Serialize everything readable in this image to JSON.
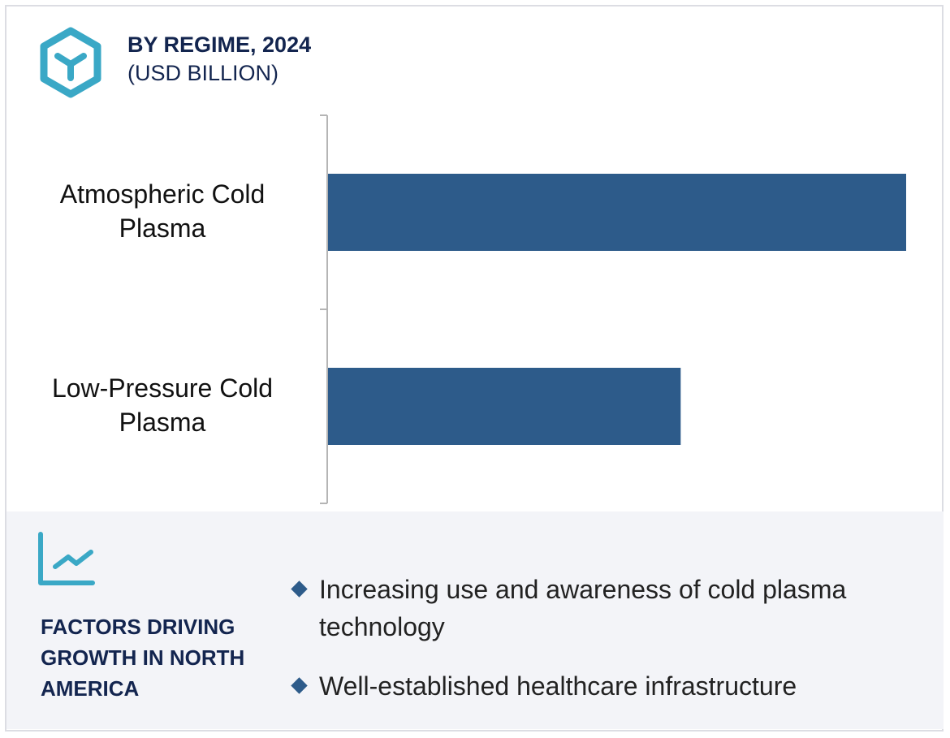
{
  "header": {
    "title": "BY REGIME, 2024",
    "subtitle": "(USD BILLION)",
    "icon": "hexagon-cube-icon"
  },
  "chart_data": {
    "type": "bar",
    "orientation": "horizontal",
    "categories": [
      "Atmospheric Cold Plasma",
      "Low-Pressure Cold Plasma"
    ],
    "values": [
      1.0,
      0.61
    ],
    "xlim": [
      0,
      1.0
    ],
    "title": "BY REGIME, 2024",
    "xlabel": "",
    "ylabel": "",
    "grid": false,
    "color": "#2d5b8a"
  },
  "factors": {
    "icon": "trend-chart-icon",
    "heading": "FACTORS DRIVING GROWTH IN NORTH AMERICA",
    "items": [
      "Increasing use and awareness of cold plasma technology",
      "Well-established healthcare infrastructure"
    ]
  },
  "colors": {
    "accent": "#3aa8c6",
    "navy": "#13254f",
    "bar": "#2d5b8a",
    "panel": "#f3f4f8"
  }
}
